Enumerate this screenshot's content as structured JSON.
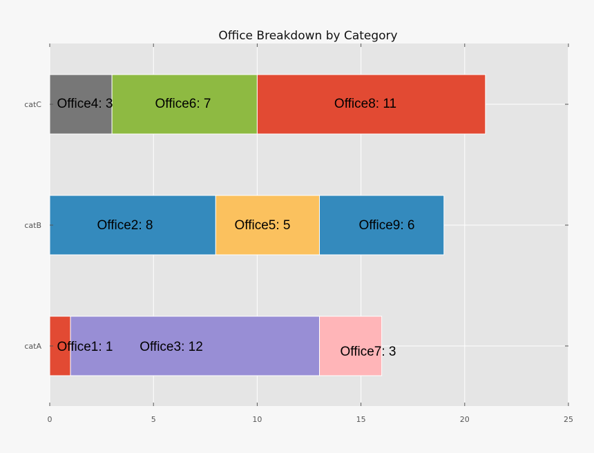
{
  "chart_data": {
    "type": "bar",
    "orientation": "horizontal",
    "stacked": true,
    "title": "Office Breakdown by Category",
    "xlabel": "",
    "ylabel": "",
    "categories": [
      "catA",
      "catB",
      "catC"
    ],
    "xlim": [
      0,
      25
    ],
    "xticks": [
      0,
      5,
      10,
      15,
      20,
      25
    ],
    "grid": true,
    "legend": "none",
    "colors": {
      "background": "#e5e5e5",
      "page": "#f7f7f7",
      "grid": "#ffffff"
    },
    "segments": [
      {
        "category": "catA",
        "start": 0,
        "value": 1,
        "label": "Office1: 1",
        "color": "#e24a33"
      },
      {
        "category": "catA",
        "start": 1,
        "value": 12,
        "label": "Office3: 12",
        "color": "#988ed5"
      },
      {
        "category": "catA",
        "start": 13,
        "value": 3,
        "label": "Office7: 3",
        "color": "#ffb5b8"
      },
      {
        "category": "catB",
        "start": 0,
        "value": 8,
        "label": "Office2: 8",
        "color": "#348abd"
      },
      {
        "category": "catB",
        "start": 8,
        "value": 5,
        "label": "Office5: 5",
        "color": "#fbc15e"
      },
      {
        "category": "catB",
        "start": 13,
        "value": 6,
        "label": "Office9: 6",
        "color": "#348abd"
      },
      {
        "category": "catC",
        "start": 0,
        "value": 3,
        "label": "Office4: 3",
        "color": "#777777"
      },
      {
        "category": "catC",
        "start": 3,
        "value": 7,
        "label": "Office6: 7",
        "color": "#8eba42"
      },
      {
        "category": "catC",
        "start": 10,
        "value": 11,
        "label": "Office8: 11",
        "color": "#e24a33"
      }
    ]
  }
}
